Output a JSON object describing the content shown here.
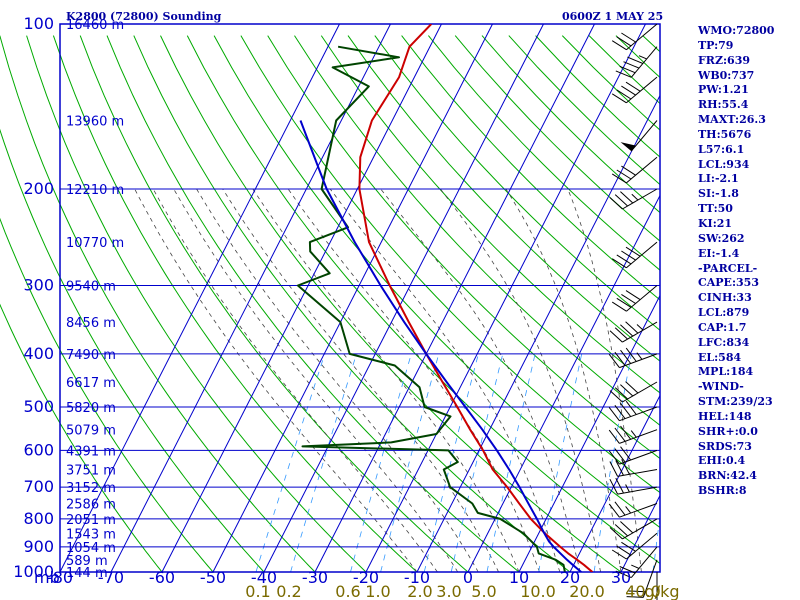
{
  "header": {
    "station": "K2800 (72800) Sounding",
    "time": "0600Z  1 MAY 25"
  },
  "indices": [
    "WMO:72800",
    "TP:79",
    "FRZ:639",
    "WB0:737",
    "PW:1.21",
    "RH:55.4",
    "MAXT:26.3",
    "TH:5676",
    "L57:6.1",
    "LCL:934",
    "LI:-2.1",
    "SI:-1.8",
    "TT:50",
    "KI:21",
    "SW:262",
    "EI:-1.4",
    "-PARCEL-",
    "CAPE:353",
    "CINH:33",
    "LCL:879",
    "CAP:1.7",
    "LFC:834",
    "EL:584",
    "MPL:184",
    "-WIND-",
    "STM:239/23",
    "HEL:148",
    "SHR+:0.0",
    "SRDS:73",
    "EHI:0.4",
    "BRN:42.4",
    "BSHR:8"
  ],
  "colors": {
    "grid": "#0000cc",
    "dry_adiabat": "#00aa00",
    "moist_adiabat": "#444444",
    "mixing_ratio": "#3399ff",
    "temperature": "#cc0000",
    "dewpoint": "#004400",
    "parcel": "#0000cc",
    "header": "#0000a0",
    "mixing_label": "#7a6a00"
  },
  "chart_data": {
    "type": "line",
    "title": "K2800 (72800) Sounding",
    "subtitle": "0600Z  1 MAY 25",
    "x_axis": {
      "unit_label": "mb",
      "ticks": [
        -80,
        -70,
        -60,
        -50,
        -40,
        -30,
        -20,
        -10,
        0,
        10,
        20,
        30
      ],
      "tick_labels": [
        "-80",
        "-70",
        "-60",
        "-50",
        "-40",
        "-30",
        "-20",
        "-10",
        "0",
        "10",
        "20",
        "30"
      ],
      "range": [
        -80,
        30
      ]
    },
    "y_axis": {
      "scale": "log",
      "pressure_levels": [
        100,
        200,
        300,
        400,
        500,
        600,
        700,
        800,
        900,
        1000
      ],
      "tick_labels": [
        "100",
        "200",
        "300",
        "400",
        "500",
        "600",
        "700",
        "800",
        "900",
        "1000"
      ],
      "range": [
        1000,
        100
      ]
    },
    "heights": [
      {
        "p": 100,
        "label": "16460 m"
      },
      {
        "p": 150,
        "label": "13960 m"
      },
      {
        "p": 200,
        "label": "12210 m"
      },
      {
        "p": 250,
        "label": "10770 m"
      },
      {
        "p": 300,
        "label": "9540 m"
      },
      {
        "p": 350,
        "label": "8456 m"
      },
      {
        "p": 400,
        "label": "7490 m"
      },
      {
        "p": 450,
        "label": "6617 m"
      },
      {
        "p": 500,
        "label": "5820 m"
      },
      {
        "p": 550,
        "label": "5079 m"
      },
      {
        "p": 600,
        "label": "4391 m"
      },
      {
        "p": 650,
        "label": "3751 m"
      },
      {
        "p": 700,
        "label": "3152 m"
      },
      {
        "p": 750,
        "label": "2586 m"
      },
      {
        "p": 800,
        "label": "2051 m"
      },
      {
        "p": 850,
        "label": "1543 m"
      },
      {
        "p": 900,
        "label": "1054 m"
      },
      {
        "p": 950,
        "label": "589 m"
      },
      {
        "p": 1000,
        "label": "144 m"
      }
    ],
    "mixing_ratio_labels": [
      "0.1",
      "0.2",
      "0.6",
      "1.0",
      "2.0",
      "3.0",
      "5.0",
      "10.0",
      "20.0",
      "40.0",
      "g/kg"
    ],
    "series": [
      {
        "key": "temperature",
        "points": [
          [
            1000,
            24.4
          ],
          [
            970,
            22
          ],
          [
            950,
            20.2
          ],
          [
            925,
            17.8
          ],
          [
            900,
            15.6
          ],
          [
            850,
            11.2
          ],
          [
            800,
            7
          ],
          [
            750,
            3.2
          ],
          [
            700,
            -0.8
          ],
          [
            650,
            -5.4
          ],
          [
            600,
            -9.2
          ],
          [
            550,
            -13.8
          ],
          [
            500,
            -18.6
          ],
          [
            450,
            -24
          ],
          [
            400,
            -30
          ],
          [
            350,
            -36.6
          ],
          [
            300,
            -44
          ],
          [
            250,
            -52.4
          ],
          [
            200,
            -59.6
          ],
          [
            175,
            -62.6
          ],
          [
            150,
            -64
          ],
          [
            125,
            -63
          ],
          [
            110,
            -64
          ],
          [
            100,
            -62
          ]
        ]
      },
      {
        "key": "dewpoint",
        "points": [
          [
            1000,
            19
          ],
          [
            970,
            18
          ],
          [
            950,
            16
          ],
          [
            925,
            12
          ],
          [
            900,
            11
          ],
          [
            850,
            7
          ],
          [
            800,
            1
          ],
          [
            780,
            -4
          ],
          [
            750,
            -6
          ],
          [
            700,
            -12
          ],
          [
            650,
            -15
          ],
          [
            630,
            -13
          ],
          [
            600,
            -16
          ],
          [
            590,
            -45
          ],
          [
            580,
            -28
          ],
          [
            560,
            -20
          ],
          [
            520,
            -19
          ],
          [
            500,
            -25
          ],
          [
            460,
            -28
          ],
          [
            420,
            -35
          ],
          [
            400,
            -45
          ],
          [
            350,
            -50
          ],
          [
            300,
            -62
          ],
          [
            285,
            -57
          ],
          [
            260,
            -63
          ],
          [
            250,
            -64
          ],
          [
            235,
            -58
          ],
          [
            200,
            -67
          ],
          [
            150,
            -71
          ],
          [
            130,
            -68
          ],
          [
            120,
            -77
          ],
          [
            115,
            -65
          ],
          [
            110,
            -78
          ]
        ]
      },
      {
        "key": "parcel",
        "points": [
          [
            1000,
            22.2
          ],
          [
            970,
            19.8
          ],
          [
            950,
            18.2
          ],
          [
            900,
            14.3
          ],
          [
            879,
            12.8
          ],
          [
            850,
            11.1
          ],
          [
            800,
            8.2
          ],
          [
            750,
            5
          ],
          [
            700,
            1.6
          ],
          [
            650,
            -2.2
          ],
          [
            600,
            -6.5
          ],
          [
            550,
            -11.4
          ],
          [
            500,
            -17
          ],
          [
            450,
            -23.2
          ],
          [
            400,
            -30
          ],
          [
            350,
            -37.5
          ],
          [
            300,
            -45.8
          ],
          [
            250,
            -55.2
          ],
          [
            200,
            -66
          ],
          [
            184,
            -69.5
          ],
          [
            150,
            -78
          ]
        ]
      }
    ],
    "wind_barbs": [
      {
        "p": 1000,
        "dir": 180,
        "spd": 10
      },
      {
        "p": 950,
        "dir": 200,
        "spd": 20
      },
      {
        "p": 900,
        "dir": 220,
        "spd": 25
      },
      {
        "p": 850,
        "dir": 230,
        "spd": 30
      },
      {
        "p": 800,
        "dir": 240,
        "spd": 30
      },
      {
        "p": 750,
        "dir": 250,
        "spd": 25
      },
      {
        "p": 700,
        "dir": 260,
        "spd": 25
      },
      {
        "p": 650,
        "dir": 260,
        "spd": 30
      },
      {
        "p": 600,
        "dir": 250,
        "spd": 30
      },
      {
        "p": 550,
        "dir": 250,
        "spd": 35
      },
      {
        "p": 500,
        "dir": 250,
        "spd": 40
      },
      {
        "p": 450,
        "dir": 240,
        "spd": 40
      },
      {
        "p": 400,
        "dir": 250,
        "spd": 45
      },
      {
        "p": 350,
        "dir": 240,
        "spd": 45
      },
      {
        "p": 300,
        "dir": 230,
        "spd": 40
      },
      {
        "p": 250,
        "dir": 230,
        "spd": 40
      },
      {
        "p": 200,
        "dir": 240,
        "spd": 35
      },
      {
        "p": 175,
        "dir": 230,
        "spd": 30
      },
      {
        "p": 150,
        "dir": 220,
        "spd": 50
      },
      {
        "p": 125,
        "dir": 230,
        "spd": 40
      },
      {
        "p": 110,
        "dir": 220,
        "spd": 45
      },
      {
        "p": 100,
        "dir": 230,
        "spd": 30
      }
    ]
  }
}
